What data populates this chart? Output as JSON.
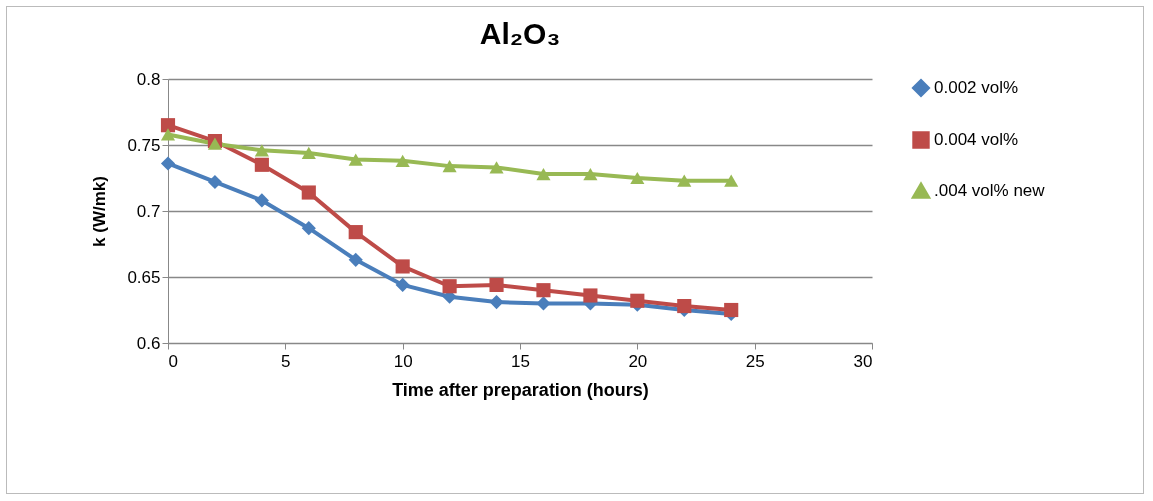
{
  "chart_data": {
    "type": "line",
    "title": "Al₂O₃",
    "xlabel": "Time after preparation (hours)",
    "ylabel": "k (W/mk)",
    "x": [
      0,
      2,
      4,
      6,
      8,
      10,
      12,
      14,
      16,
      18,
      20,
      22,
      24
    ],
    "series": [
      {
        "name": "0.002 vol%",
        "color": "#4a7ebb",
        "marker": "diamond",
        "values": [
          0.736,
          0.722,
          0.708,
          0.687,
          0.663,
          0.644,
          0.635,
          0.631,
          0.63,
          0.63,
          0.629,
          0.625,
          0.622
        ]
      },
      {
        "name": "0.004 vol%",
        "color": "#be4b48",
        "marker": "square",
        "values": [
          0.765,
          0.753,
          0.735,
          0.714,
          0.684,
          0.658,
          0.643,
          0.644,
          0.64,
          0.636,
          0.632,
          0.628,
          0.625
        ]
      },
      {
        "name": ".004 vol% new",
        "color": "#98b954",
        "marker": "triangle",
        "values": [
          0.758,
          0.751,
          0.746,
          0.744,
          0.739,
          0.738,
          0.734,
          0.733,
          0.728,
          0.728,
          0.725,
          0.723,
          0.723
        ]
      }
    ],
    "xlim": [
      0,
      30
    ],
    "xticks": [
      0,
      5,
      10,
      15,
      20,
      25,
      30
    ],
    "ylim": [
      0.6,
      0.8
    ],
    "yticks": [
      0.6,
      0.65,
      0.7,
      0.75,
      0.8
    ],
    "grid": "y",
    "legend": "right",
    "line_style": "solid"
  }
}
